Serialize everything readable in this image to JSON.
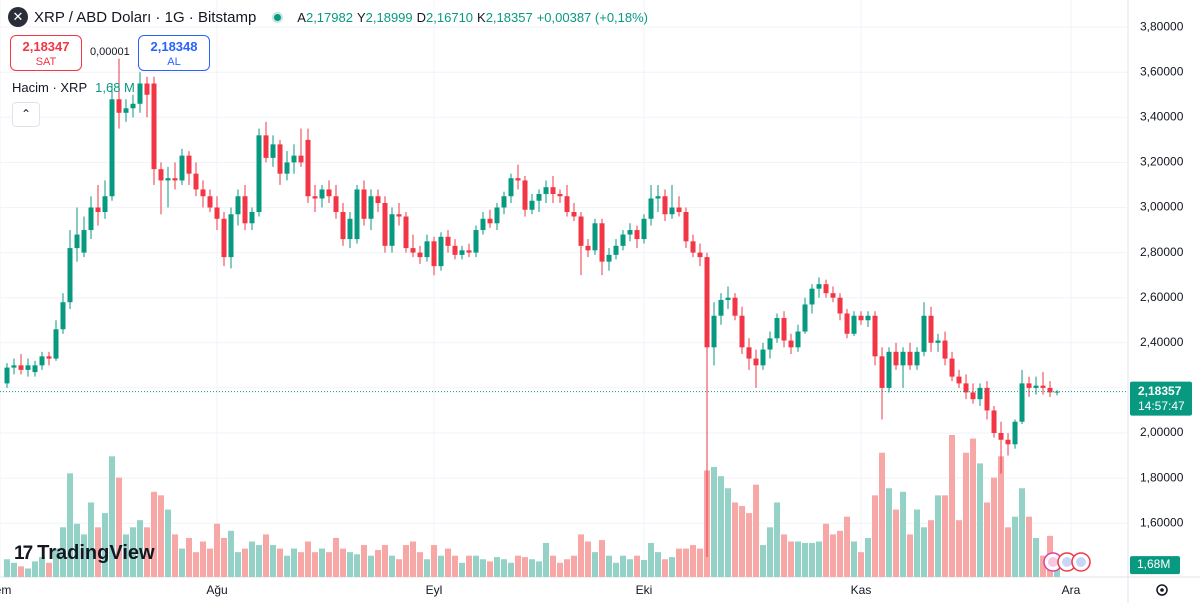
{
  "header": {
    "symbol": "XRP / ABD Doları · 1G · Bitstamp",
    "ohlc": [
      {
        "label": "A",
        "value": "2,17982"
      },
      {
        "label": "Y",
        "value": "2,18999"
      },
      {
        "label": "D",
        "value": "2,16710"
      },
      {
        "label": "K",
        "value": "2,18357"
      }
    ],
    "change": "+0,00387 (+0,18%)"
  },
  "trade": {
    "sell_price": "2,18347",
    "sell_label": "SAT",
    "spread": "0,00001",
    "buy_price": "2,18348",
    "buy_label": "AL"
  },
  "volume_legend": {
    "title": "Hacim · XRP",
    "value": "1,68 M"
  },
  "logo": "TradingView",
  "chart_data": {
    "type": "candlestick",
    "ohlc": [
      [
        2.22,
        2.31,
        2.2,
        2.29
      ],
      [
        2.29,
        2.33,
        2.26,
        2.3
      ],
      [
        2.3,
        2.35,
        2.26,
        2.28
      ],
      [
        2.28,
        2.33,
        2.25,
        2.3
      ],
      [
        2.27,
        2.32,
        2.25,
        2.3
      ],
      [
        2.3,
        2.36,
        2.28,
        2.34
      ],
      [
        2.34,
        2.36,
        2.3,
        2.33
      ],
      [
        2.33,
        2.5,
        2.32,
        2.46
      ],
      [
        2.46,
        2.62,
        2.44,
        2.58
      ],
      [
        2.58,
        2.9,
        2.55,
        2.82
      ],
      [
        2.82,
        3.0,
        2.76,
        2.88
      ],
      [
        2.8,
        2.96,
        2.78,
        2.9
      ],
      [
        2.9,
        3.05,
        2.86,
        3.0
      ],
      [
        3.0,
        3.1,
        2.92,
        2.98
      ],
      [
        2.98,
        3.12,
        2.95,
        3.05
      ],
      [
        3.05,
        3.55,
        3.03,
        3.48
      ],
      [
        3.48,
        3.66,
        3.35,
        3.42
      ],
      [
        3.42,
        3.48,
        3.38,
        3.44
      ],
      [
        3.44,
        3.5,
        3.4,
        3.46
      ],
      [
        3.46,
        3.6,
        3.42,
        3.55
      ],
      [
        3.55,
        3.58,
        3.4,
        3.5
      ],
      [
        3.55,
        3.58,
        3.1,
        3.17
      ],
      [
        3.17,
        3.2,
        2.97,
        3.12
      ],
      [
        3.12,
        3.18,
        3.0,
        3.13
      ],
      [
        3.13,
        3.2,
        3.08,
        3.12
      ],
      [
        3.12,
        3.26,
        3.1,
        3.23
      ],
      [
        3.23,
        3.25,
        3.1,
        3.15
      ],
      [
        3.15,
        3.2,
        3.05,
        3.08
      ],
      [
        3.08,
        3.12,
        3.0,
        3.05
      ],
      [
        3.05,
        3.08,
        2.98,
        3.0
      ],
      [
        3.0,
        3.05,
        2.9,
        2.95
      ],
      [
        2.95,
        2.98,
        2.74,
        2.78
      ],
      [
        2.78,
        3.0,
        2.73,
        2.97
      ],
      [
        2.97,
        3.08,
        2.92,
        3.05
      ],
      [
        3.05,
        3.1,
        2.9,
        2.93
      ],
      [
        2.93,
        3.0,
        2.9,
        2.98
      ],
      [
        2.98,
        3.35,
        2.96,
        3.32
      ],
      [
        3.32,
        3.38,
        3.2,
        3.22
      ],
      [
        3.22,
        3.32,
        3.18,
        3.28
      ],
      [
        3.28,
        3.3,
        3.1,
        3.15
      ],
      [
        3.15,
        3.25,
        3.12,
        3.2
      ],
      [
        3.2,
        3.28,
        3.15,
        3.23
      ],
      [
        3.23,
        3.35,
        3.18,
        3.2
      ],
      [
        3.3,
        3.35,
        3.02,
        3.05
      ],
      [
        3.05,
        3.1,
        2.98,
        3.04
      ],
      [
        3.04,
        3.1,
        3.0,
        3.08
      ],
      [
        3.08,
        3.12,
        3.02,
        3.05
      ],
      [
        3.05,
        3.1,
        2.95,
        2.98
      ],
      [
        2.98,
        3.02,
        2.83,
        2.86
      ],
      [
        2.86,
        2.98,
        2.82,
        2.95
      ],
      [
        2.86,
        3.1,
        2.84,
        3.08
      ],
      [
        3.08,
        3.12,
        2.92,
        2.95
      ],
      [
        2.95,
        3.08,
        2.9,
        3.05
      ],
      [
        3.05,
        3.08,
        2.98,
        3.02
      ],
      [
        3.02,
        3.05,
        2.8,
        2.83
      ],
      [
        2.83,
        3.0,
        2.8,
        2.97
      ],
      [
        2.97,
        3.02,
        2.92,
        2.96
      ],
      [
        2.96,
        2.98,
        2.8,
        2.82
      ],
      [
        2.82,
        2.88,
        2.78,
        2.8
      ],
      [
        2.8,
        2.83,
        2.75,
        2.78
      ],
      [
        2.78,
        2.88,
        2.76,
        2.85
      ],
      [
        2.85,
        2.87,
        2.7,
        2.74
      ],
      [
        2.74,
        2.89,
        2.72,
        2.87
      ],
      [
        2.87,
        2.9,
        2.8,
        2.83
      ],
      [
        2.83,
        2.86,
        2.77,
        2.79
      ],
      [
        2.79,
        2.83,
        2.77,
        2.81
      ],
      [
        2.81,
        2.84,
        2.78,
        2.8
      ],
      [
        2.8,
        2.92,
        2.78,
        2.9
      ],
      [
        2.9,
        2.98,
        2.88,
        2.95
      ],
      [
        2.95,
        2.99,
        2.91,
        2.93
      ],
      [
        2.93,
        3.02,
        2.9,
        3.0
      ],
      [
        3.0,
        3.07,
        2.97,
        3.05
      ],
      [
        3.05,
        3.15,
        3.02,
        3.13
      ],
      [
        3.13,
        3.19,
        3.08,
        3.12
      ],
      [
        3.12,
        3.14,
        2.96,
        2.99
      ],
      [
        2.99,
        3.06,
        2.97,
        3.03
      ],
      [
        3.03,
        3.08,
        2.98,
        3.06
      ],
      [
        3.06,
        3.12,
        3.02,
        3.09
      ],
      [
        3.09,
        3.14,
        3.02,
        3.06
      ],
      [
        3.06,
        3.08,
        3.02,
        3.05
      ],
      [
        3.05,
        3.1,
        2.96,
        2.98
      ],
      [
        2.98,
        3.02,
        2.94,
        2.96
      ],
      [
        2.96,
        2.98,
        2.7,
        2.83
      ],
      [
        2.83,
        2.86,
        2.78,
        2.81
      ],
      [
        2.81,
        2.95,
        2.79,
        2.93
      ],
      [
        2.93,
        2.95,
        2.7,
        2.76
      ],
      [
        2.76,
        2.82,
        2.72,
        2.79
      ],
      [
        2.79,
        2.86,
        2.77,
        2.83
      ],
      [
        2.83,
        2.9,
        2.81,
        2.88
      ],
      [
        2.88,
        2.93,
        2.85,
        2.9
      ],
      [
        2.9,
        2.92,
        2.82,
        2.86
      ],
      [
        2.86,
        2.97,
        2.84,
        2.95
      ],
      [
        2.95,
        3.1,
        2.92,
        3.04
      ],
      [
        3.04,
        3.1,
        2.98,
        3.05
      ],
      [
        3.05,
        3.08,
        2.94,
        2.97
      ],
      [
        2.97,
        3.1,
        2.95,
        3.0
      ],
      [
        3.0,
        3.05,
        2.96,
        2.98
      ],
      [
        2.98,
        3.0,
        2.82,
        2.85
      ],
      [
        2.85,
        2.88,
        2.78,
        2.8
      ],
      [
        2.8,
        2.84,
        2.74,
        2.78
      ],
      [
        2.78,
        2.8,
        1.45,
        2.38
      ],
      [
        2.38,
        2.58,
        2.3,
        2.52
      ],
      [
        2.52,
        2.62,
        2.48,
        2.59
      ],
      [
        2.59,
        2.65,
        2.55,
        2.6
      ],
      [
        2.6,
        2.62,
        2.5,
        2.52
      ],
      [
        2.52,
        2.56,
        2.35,
        2.38
      ],
      [
        2.38,
        2.42,
        2.28,
        2.33
      ],
      [
        2.33,
        2.37,
        2.2,
        2.3
      ],
      [
        2.3,
        2.4,
        2.28,
        2.37
      ],
      [
        2.37,
        2.45,
        2.33,
        2.42
      ],
      [
        2.42,
        2.53,
        2.4,
        2.51
      ],
      [
        2.51,
        2.54,
        2.38,
        2.41
      ],
      [
        2.41,
        2.44,
        2.35,
        2.38
      ],
      [
        2.38,
        2.48,
        2.36,
        2.45
      ],
      [
        2.45,
        2.6,
        2.44,
        2.57
      ],
      [
        2.57,
        2.66,
        2.53,
        2.64
      ],
      [
        2.64,
        2.69,
        2.6,
        2.66
      ],
      [
        2.66,
        2.68,
        2.6,
        2.62
      ],
      [
        2.62,
        2.65,
        2.58,
        2.6
      ],
      [
        2.6,
        2.62,
        2.5,
        2.53
      ],
      [
        2.53,
        2.55,
        2.42,
        2.44
      ],
      [
        2.44,
        2.54,
        2.43,
        2.52
      ],
      [
        2.52,
        2.54,
        2.48,
        2.5
      ],
      [
        2.5,
        2.54,
        2.47,
        2.52
      ],
      [
        2.52,
        2.54,
        2.3,
        2.34
      ],
      [
        2.34,
        2.38,
        2.06,
        2.2
      ],
      [
        2.2,
        2.38,
        2.18,
        2.36
      ],
      [
        2.36,
        2.4,
        2.28,
        2.3
      ],
      [
        2.3,
        2.38,
        2.2,
        2.36
      ],
      [
        2.36,
        2.4,
        2.28,
        2.3
      ],
      [
        2.3,
        2.38,
        2.28,
        2.36
      ],
      [
        2.36,
        2.58,
        2.34,
        2.52
      ],
      [
        2.52,
        2.56,
        2.36,
        2.4
      ],
      [
        2.4,
        2.44,
        2.36,
        2.41
      ],
      [
        2.41,
        2.45,
        2.3,
        2.33
      ],
      [
        2.33,
        2.36,
        2.23,
        2.25
      ],
      [
        2.25,
        2.28,
        2.2,
        2.22
      ],
      [
        2.22,
        2.26,
        2.15,
        2.18
      ],
      [
        2.18,
        2.22,
        2.13,
        2.15
      ],
      [
        2.15,
        2.22,
        2.12,
        2.2
      ],
      [
        2.2,
        2.23,
        2.06,
        2.1
      ],
      [
        2.1,
        2.12,
        1.98,
        2.0
      ],
      [
        2.0,
        2.05,
        1.82,
        1.97
      ],
      [
        1.97,
        2.0,
        1.9,
        1.95
      ],
      [
        1.95,
        2.06,
        1.93,
        2.05
      ],
      [
        2.05,
        2.28,
        2.04,
        2.22
      ],
      [
        2.22,
        2.25,
        2.16,
        2.2
      ],
      [
        2.2,
        2.25,
        2.17,
        2.21
      ],
      [
        2.21,
        2.27,
        2.17,
        2.2
      ],
      [
        2.2,
        2.23,
        2.16,
        2.18
      ],
      [
        2.17982,
        2.18999,
        2.1671,
        2.18357
      ]
    ],
    "volume": [
      2500000.0,
      2000000.0,
      1500000.0,
      1200000.0,
      2200000.0,
      2800000.0,
      2000000.0,
      4000000.0,
      7000000.0,
      14600000.0,
      7500000.0,
      6000000.0,
      10500000.0,
      7000000.0,
      9000000.0,
      17000000.0,
      14000000.0,
      6000000.0,
      7000000.0,
      8000000.0,
      7000000.0,
      12000000.0,
      11500000.0,
      9500000.0,
      6000000.0,
      4000000.0,
      5500000.0,
      3500000.0,
      5000000.0,
      4000000.0,
      7500000.0,
      5500000.0,
      6500000.0,
      3500000.0,
      4000000.0,
      5000000.0,
      4500000.0,
      6000000.0,
      4500000.0,
      4000000.0,
      3000000.0,
      4000000.0,
      3500000.0,
      5000000.0,
      3500000.0,
      4000000.0,
      3500000.0,
      5500000.0,
      4000000.0,
      3500000.0,
      3200000.0,
      4500000.0,
      3000000.0,
      3800000.0,
      4500000.0,
      3000000.0,
      2500000.0,
      4500000.0,
      5000000.0,
      3500000.0,
      2500000.0,
      4500000.0,
      3000000.0,
      4000000.0,
      3000000.0,
      2000000.0,
      3000000.0,
      3000000.0,
      2500000.0,
      2200000.0,
      2800000.0,
      2500000.0,
      2000000.0,
      3000000.0,
      2800000.0,
      2500000.0,
      2200000.0,
      4800000.0,
      3000000.0,
      2000000.0,
      2500000.0,
      3000000.0,
      6000000.0,
      5000000.0,
      3500000.0,
      5200000.0,
      3000000.0,
      2000000.0,
      3000000.0,
      2500000.0,
      3000000.0,
      2400000.0,
      4800000.0,
      3500000.0,
      2500000.0,
      2800000.0,
      4000000.0,
      4000000.0,
      4500000.0,
      4000000.0,
      15000000.0,
      15500000.0,
      14200000.0,
      12500000.0,
      10500000.0,
      10000000.0,
      9000000.0,
      13000000.0,
      4500000.0,
      7000000.0,
      10500000.0,
      6000000.0,
      5000000.0,
      5000000.0,
      4800000.0,
      4800000.0,
      5000000.0,
      7500000.0,
      6000000.0,
      6500000.0,
      8500000.0,
      5000000.0,
      3500000.0,
      5500000.0,
      11500000.0,
      17500000.0,
      12500000.0,
      9500000.0,
      12000000.0,
      6000000.0,
      9500000.0,
      7000000.0,
      8000000.0,
      11500000.0,
      11500000.0,
      20000000.0,
      8000000.0,
      17500000.0,
      19500000.0,
      16000000.0,
      10500000.0,
      14000000.0,
      17000000.0,
      7000000.0,
      8500000.0,
      12500000.0,
      8500000.0,
      5500000.0,
      3000000.0,
      5800000.0,
      1680000
    ],
    "last_volume_label": "1,68M",
    "last_price_label": "2,18357",
    "countdown": "14:57:47",
    "up_color": "#089981",
    "down_color": "#f23645",
    "volume_up_color": "#94d1c6",
    "volume_down_color": "#f7a8a6",
    "xlim": [
      -1,
      160.14
    ],
    "xticks": [
      {
        "value": -1,
        "label": "Tem"
      },
      {
        "value": 30,
        "label": "Ağu"
      },
      {
        "value": 61,
        "label": "Eyl"
      },
      {
        "value": 91,
        "label": "Eki"
      },
      {
        "value": 122,
        "label": "Kas"
      },
      {
        "value": 152,
        "label": "Ara"
      }
    ],
    "ylim": [
      1.3614,
      3.9202
    ],
    "yticks": [
      {
        "value": 3.8,
        "label": "3,80000"
      },
      {
        "value": 3.6,
        "label": "3,60000"
      },
      {
        "value": 3.4,
        "label": "3,40000"
      },
      {
        "value": 3.2,
        "label": "3,20000"
      },
      {
        "value": 3.0,
        "label": "3,00000"
      },
      {
        "value": 2.8,
        "label": "2,80000"
      },
      {
        "value": 2.6,
        "label": "2,60000"
      },
      {
        "value": 2.4,
        "label": "2,40000"
      },
      {
        "value": 2.2,
        "label": "2,20000"
      },
      {
        "value": 2.0,
        "label": "2,00000"
      },
      {
        "value": 1.8,
        "label": "1,80000"
      },
      {
        "value": 1.6,
        "label": "1,60000"
      }
    ],
    "grid": true
  }
}
